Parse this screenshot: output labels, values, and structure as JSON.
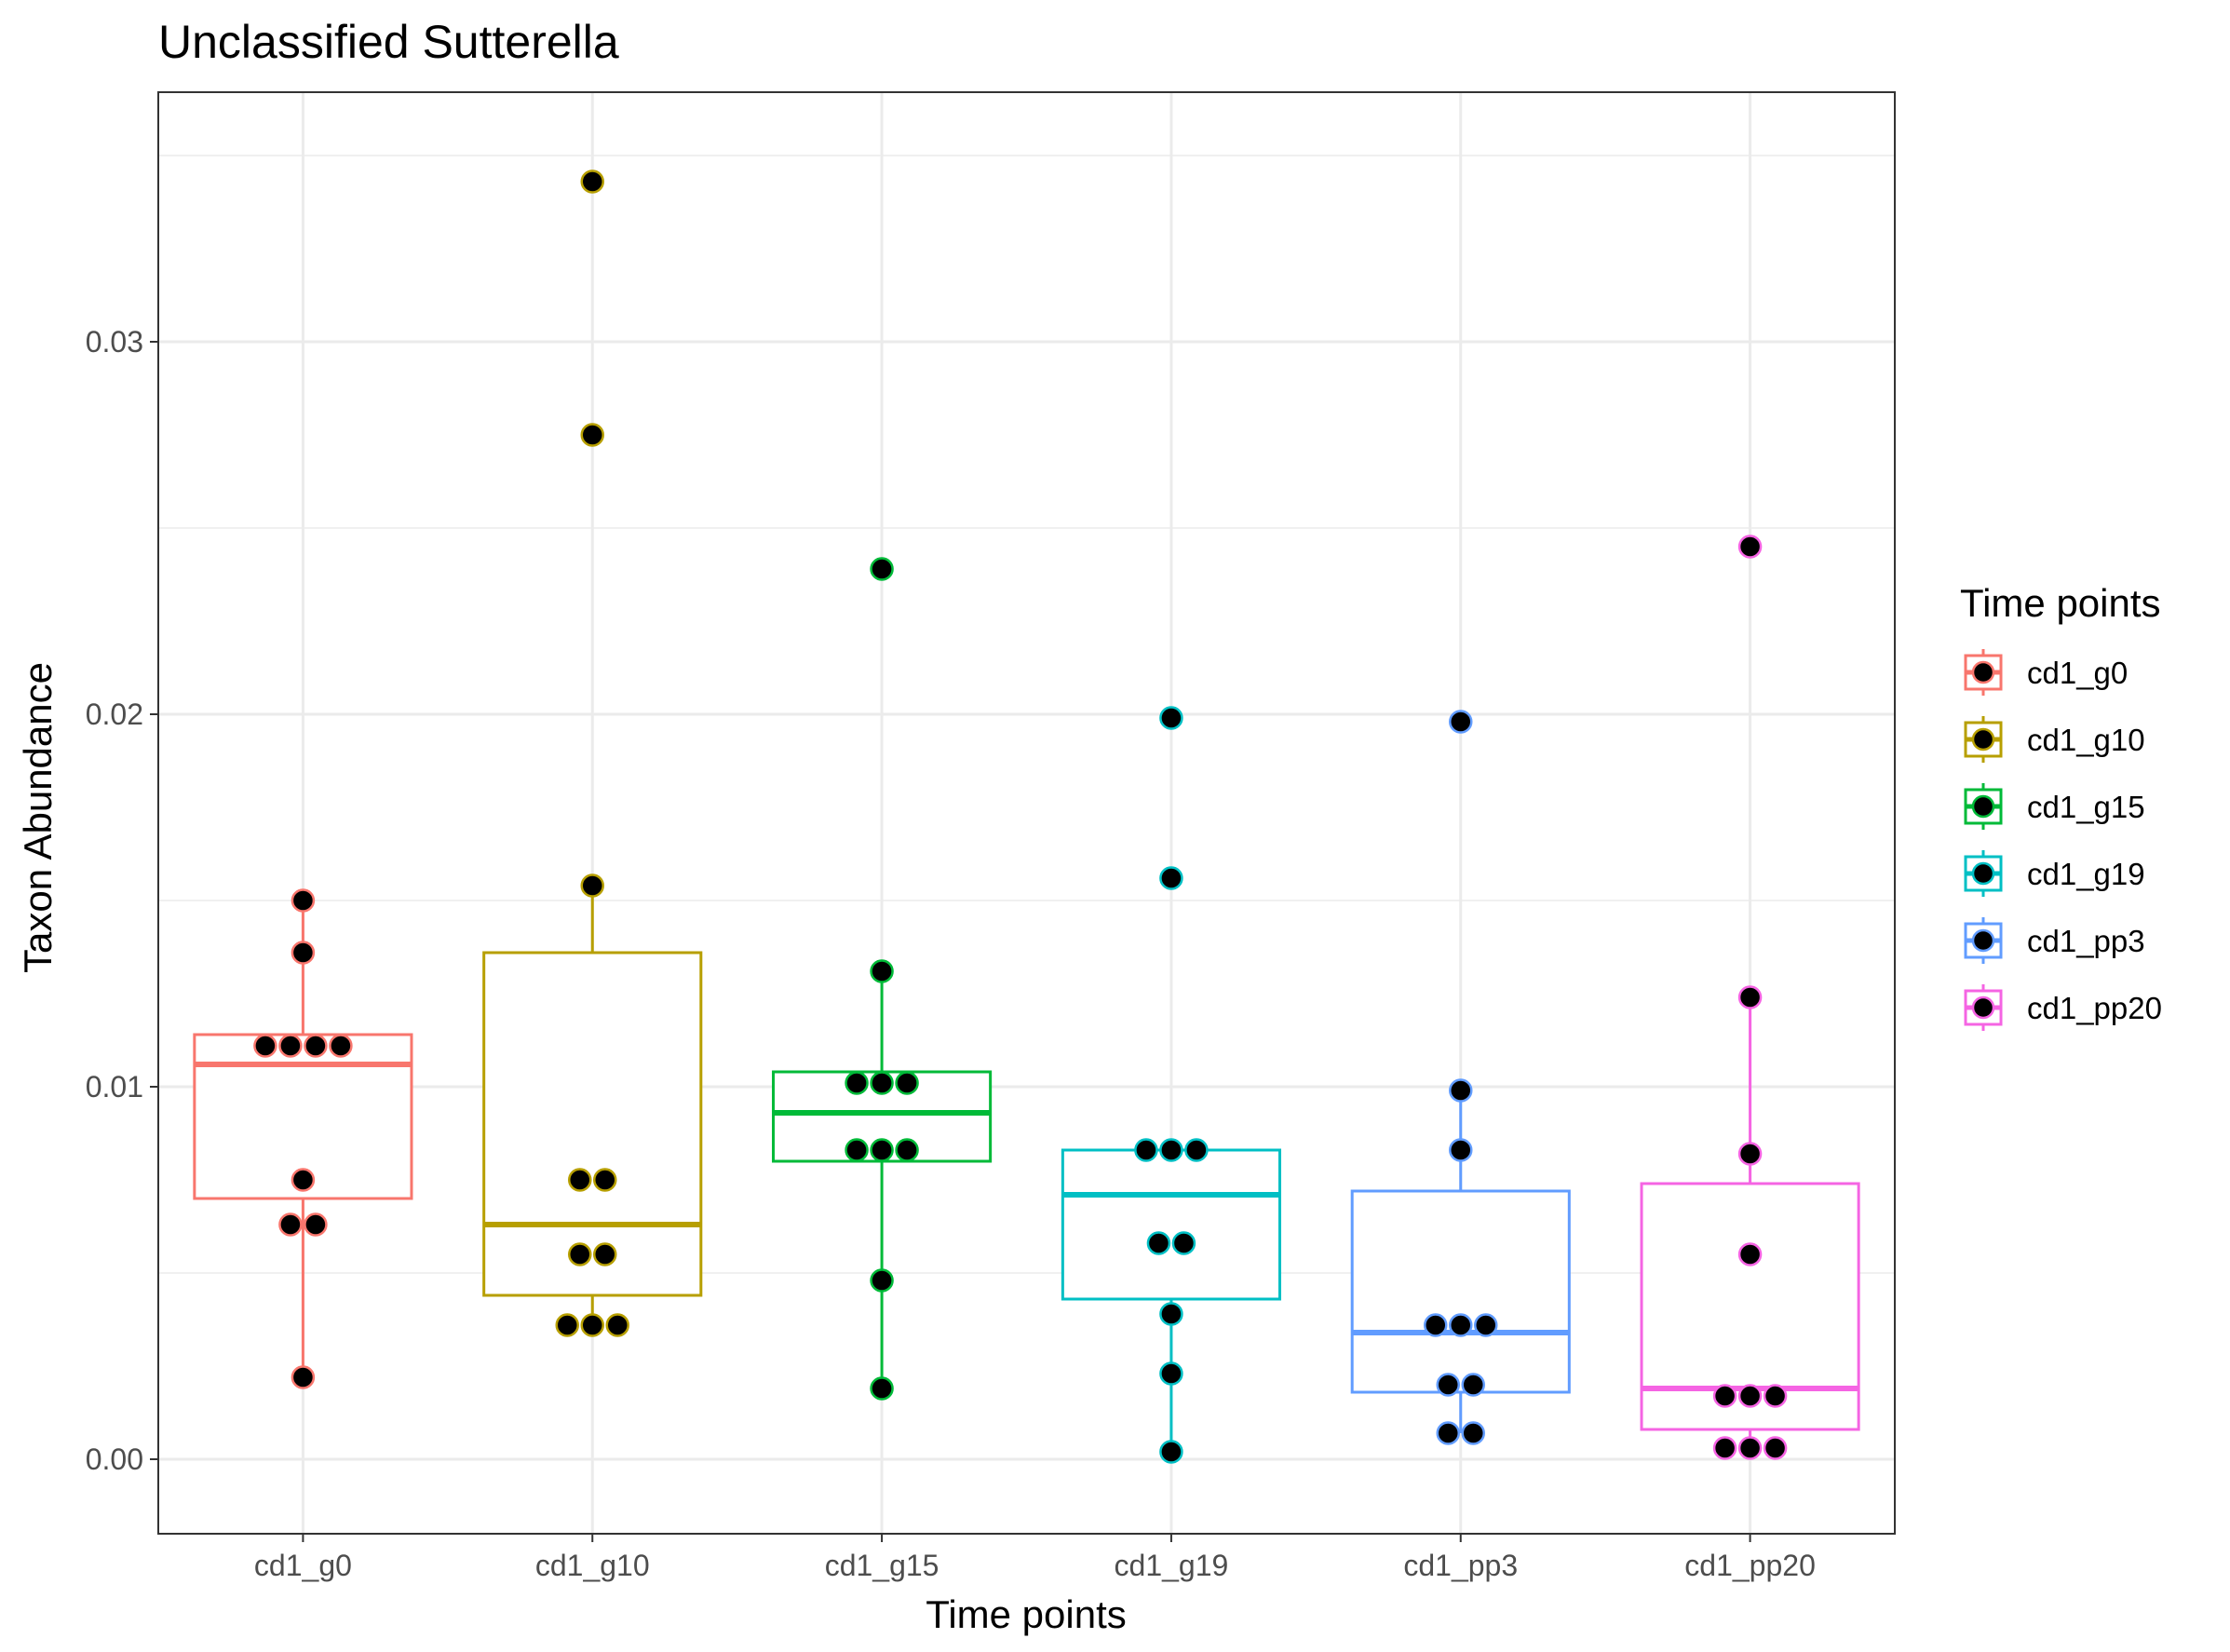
{
  "chart_data": {
    "type": "box",
    "title": "Unclassified  Sutterella",
    "xlabel": "Time points",
    "ylabel": "Taxon Abundance",
    "ylim": [
      -0.002,
      0.0367
    ],
    "yticks": [
      0.0,
      0.01,
      0.02,
      0.03
    ],
    "ytick_labels": [
      "0.00",
      "0.01",
      "0.02",
      "0.03"
    ],
    "grid": true,
    "legend": {
      "title": "Time points",
      "position": "right"
    },
    "categories": [
      "cd1_g0",
      "cd1_g10",
      "cd1_g15",
      "cd1_g19",
      "cd1_pp3",
      "cd1_pp20"
    ],
    "series": [
      {
        "name": "cd1_g0",
        "color": "#F8766D",
        "box": {
          "q1": 0.007,
          "median": 0.0106,
          "q3": 0.0114,
          "whisker_low": 0.0022,
          "whisker_high": 0.015
        },
        "points": [
          0.015,
          0.0136,
          0.0111,
          0.0111,
          0.0111,
          0.0111,
          0.0075,
          0.0063,
          0.0063,
          0.0022
        ]
      },
      {
        "name": "cd1_g10",
        "color": "#B79F00",
        "box": {
          "q1": 0.0044,
          "median": 0.0063,
          "q3": 0.0136,
          "whisker_low": 0.0036,
          "whisker_high": 0.0154
        },
        "points": [
          0.0343,
          0.0275,
          0.0154,
          0.0075,
          0.0075,
          0.0055,
          0.0055,
          0.0036,
          0.0036,
          0.0036
        ]
      },
      {
        "name": "cd1_g15",
        "color": "#00BA38",
        "box": {
          "q1": 0.008,
          "median": 0.0093,
          "q3": 0.0104,
          "whisker_low": 0.0019,
          "whisker_high": 0.0131
        },
        "points": [
          0.0239,
          0.0131,
          0.0101,
          0.0101,
          0.0101,
          0.0083,
          0.0083,
          0.0083,
          0.0048,
          0.0019
        ]
      },
      {
        "name": "cd1_g19",
        "color": "#00BFC4",
        "box": {
          "q1": 0.0043,
          "median": 0.0071,
          "q3": 0.0083,
          "whisker_low": 0.0002,
          "whisker_high": 0.0083
        },
        "points": [
          0.0199,
          0.0156,
          0.0083,
          0.0083,
          0.0083,
          0.0058,
          0.0058,
          0.0039,
          0.0023,
          0.0002
        ]
      },
      {
        "name": "cd1_pp3",
        "color": "#619CFF",
        "box": {
          "q1": 0.0018,
          "median": 0.0034,
          "q3": 0.0072,
          "whisker_low": 0.0007,
          "whisker_high": 0.0099
        },
        "points": [
          0.0198,
          0.0099,
          0.0083,
          0.0036,
          0.0036,
          0.0036,
          0.002,
          0.002,
          0.0007,
          0.0007
        ]
      },
      {
        "name": "cd1_pp20",
        "color": "#F564E3",
        "box": {
          "q1": 0.0008,
          "median": 0.0019,
          "q3": 0.0074,
          "whisker_low": 0.0003,
          "whisker_high": 0.0124
        },
        "points": [
          0.0245,
          0.0124,
          0.0082,
          0.0055,
          0.0017,
          0.0017,
          0.0017,
          0.0003,
          0.0003,
          0.0003
        ]
      }
    ]
  }
}
